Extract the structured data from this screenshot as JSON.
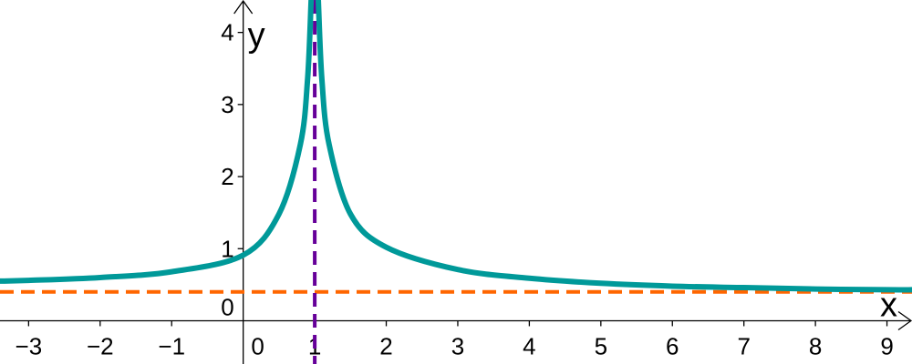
{
  "chart_data": {
    "type": "line",
    "title": "",
    "xlabel": "x",
    "ylabel": "y",
    "xlim": [
      -3.4,
      9.35
    ],
    "ylim": [
      -0.6,
      4.45
    ],
    "grid": false,
    "x_ticks": [
      -3,
      -2,
      -1,
      0,
      1,
      2,
      3,
      4,
      5,
      6,
      7,
      8,
      9
    ],
    "x_tick_labels": [
      "−3",
      "−2",
      "−1",
      "0",
      "1",
      "2",
      "3",
      "4",
      "5",
      "6",
      "7",
      "8",
      "9"
    ],
    "y_ticks": [
      0,
      1,
      2,
      3,
      4
    ],
    "y_tick_labels": [
      "0",
      "1",
      "2",
      "3",
      "4"
    ],
    "colors": {
      "curve": "#009999",
      "horizontal_asymptote": "#ff6600",
      "vertical_asymptote": "#660099",
      "axes": "#000000"
    },
    "series": [
      {
        "x": [
          -3.4,
          -3,
          -2,
          -1,
          0,
          0.5,
          0.8,
          0.9,
          0.95,
          1.05,
          1.1,
          1.2,
          1.5,
          2,
          3,
          4,
          5,
          6,
          7,
          8,
          9,
          9.35
        ],
        "y": [
          0.55,
          0.56,
          0.6,
          0.68,
          0.91,
          1.48,
          2.45,
          3.35,
          4.45,
          4.45,
          3.35,
          2.45,
          1.48,
          1.02,
          0.71,
          0.59,
          0.52,
          0.48,
          0.46,
          0.44,
          0.43,
          0.43
        ]
      }
    ],
    "reference_lines": [
      {
        "orientation": "horizontal",
        "value": 0.4,
        "style": "dashed",
        "color": "#ff6600"
      },
      {
        "orientation": "vertical",
        "value": 1,
        "style": "dashed",
        "color": "#660099"
      }
    ]
  }
}
